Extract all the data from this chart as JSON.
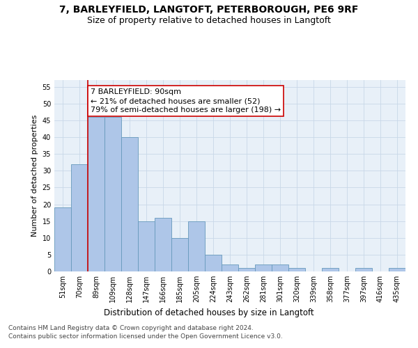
{
  "title_line1": "7, BARLEYFIELD, LANGTOFT, PETERBOROUGH, PE6 9RF",
  "title_line2": "Size of property relative to detached houses in Langtoft",
  "xlabel": "Distribution of detached houses by size in Langtoft",
  "ylabel": "Number of detached properties",
  "categories": [
    "51sqm",
    "70sqm",
    "89sqm",
    "109sqm",
    "128sqm",
    "147sqm",
    "166sqm",
    "185sqm",
    "205sqm",
    "224sqm",
    "243sqm",
    "262sqm",
    "281sqm",
    "301sqm",
    "320sqm",
    "339sqm",
    "358sqm",
    "377sqm",
    "397sqm",
    "416sqm",
    "435sqm"
  ],
  "values": [
    19,
    32,
    46,
    46,
    40,
    15,
    16,
    10,
    15,
    5,
    2,
    1,
    2,
    2,
    1,
    0,
    1,
    0,
    1,
    0,
    1
  ],
  "bar_color": "#aec6e8",
  "bar_edge_color": "#6699bb",
  "vline_x_idx": 2,
  "vline_color": "#cc0000",
  "annotation_text": "7 BARLEYFIELD: 90sqm\n← 21% of detached houses are smaller (52)\n79% of semi-detached houses are larger (198) →",
  "annotation_box_color": "#ffffff",
  "annotation_box_edge": "#cc0000",
  "ylim": [
    0,
    57
  ],
  "yticks": [
    0,
    5,
    10,
    15,
    20,
    25,
    30,
    35,
    40,
    45,
    50,
    55
  ],
  "ax_facecolor": "#e8f0f8",
  "grid_color": "#c8d8e8",
  "footer_text": "Contains HM Land Registry data © Crown copyright and database right 2024.\nContains public sector information licensed under the Open Government Licence v3.0.",
  "title_fontsize": 10,
  "subtitle_fontsize": 9,
  "xlabel_fontsize": 8.5,
  "ylabel_fontsize": 8,
  "tick_fontsize": 7,
  "annotation_fontsize": 8,
  "footer_fontsize": 6.5
}
